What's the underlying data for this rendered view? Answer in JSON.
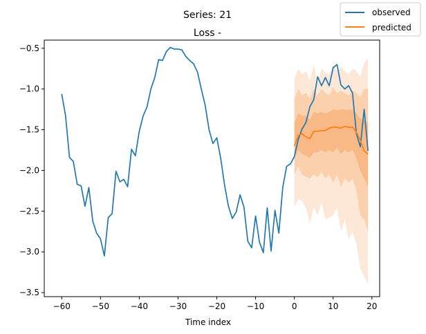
{
  "chart_data": {
    "type": "line",
    "title": "Series: 21",
    "subtitle": "Loss -",
    "xlabel": "Time index",
    "ylabel": "",
    "xlim": [
      -64.5,
      22.0
    ],
    "ylim": [
      -3.55,
      -0.4
    ],
    "xticks": [
      -60,
      -50,
      -40,
      -30,
      -20,
      -10,
      0,
      10,
      20
    ],
    "yticks": [
      -3.5,
      -3.0,
      -2.5,
      -2.0,
      -1.5,
      -1.0,
      -0.5
    ],
    "grid": false,
    "legend_position": "top-right",
    "colors": {
      "observed": "#1f77b4",
      "predicted": "#ff7f0e",
      "band_outer": "#fde7d6",
      "band_mid": "#fbd0ad",
      "band_inner": "#f9b986"
    },
    "series": [
      {
        "name": "observed",
        "x": [
          -60,
          -59,
          -58,
          -57,
          -56,
          -55,
          -54,
          -53,
          -52,
          -51,
          -50,
          -49,
          -48,
          -47,
          -46,
          -45,
          -44,
          -43,
          -42,
          -41,
          -40,
          -39,
          -38,
          -37,
          -36,
          -35,
          -34,
          -33,
          -32,
          -31,
          -30,
          -29,
          -28,
          -27,
          -26,
          -25,
          -24,
          -23,
          -22,
          -21,
          -20,
          -19,
          -18,
          -17,
          -16,
          -15,
          -14,
          -13,
          -12,
          -11,
          -10,
          -9,
          -8,
          -7,
          -6,
          -5,
          -4,
          -3,
          -2,
          -1,
          0,
          1,
          2,
          3,
          4,
          5,
          6,
          7,
          8,
          9,
          10,
          11,
          12,
          13,
          14,
          15,
          16,
          17,
          18,
          19
        ],
        "y": [
          -1.06,
          -1.33,
          -1.84,
          -1.89,
          -2.17,
          -2.19,
          -2.44,
          -2.21,
          -2.62,
          -2.77,
          -2.84,
          -3.05,
          -2.58,
          -2.53,
          -2.01,
          -2.14,
          -2.11,
          -2.2,
          -1.74,
          -1.82,
          -1.52,
          -1.33,
          -1.22,
          -1.0,
          -0.86,
          -0.64,
          -0.65,
          -0.54,
          -0.49,
          -0.51,
          -0.51,
          -0.52,
          -0.6,
          -0.65,
          -0.69,
          -0.79,
          -1.0,
          -1.2,
          -1.5,
          -1.67,
          -1.6,
          -1.85,
          -2.18,
          -2.44,
          -2.59,
          -2.51,
          -2.3,
          -2.45,
          -2.87,
          -2.95,
          -2.56,
          -2.88,
          -3.01,
          -2.46,
          -2.99,
          -2.49,
          -2.77,
          -2.21,
          -1.95,
          -1.92,
          -1.83,
          -1.62,
          -1.49,
          -1.41,
          -1.22,
          -1.13,
          -0.85,
          -0.96,
          -0.86,
          -0.96,
          -0.74,
          -0.7,
          -0.95,
          -1.0,
          -0.96,
          -1.05,
          -1.55,
          -1.71,
          -1.25,
          -1.76
        ]
      },
      {
        "name": "predicted",
        "x": [
          0,
          1,
          2,
          3,
          4,
          5,
          6,
          7,
          8,
          9,
          10,
          11,
          12,
          13,
          14,
          15,
          16,
          17,
          18,
          19
        ],
        "y": [
          -1.7,
          -1.57,
          -1.55,
          -1.59,
          -1.61,
          -1.52,
          -1.52,
          -1.51,
          -1.51,
          -1.48,
          -1.47,
          -1.47,
          -1.48,
          -1.46,
          -1.47,
          -1.47,
          -1.53,
          -1.63,
          -1.76,
          -1.8
        ]
      }
    ],
    "bands": {
      "x": [
        0,
        1,
        2,
        3,
        4,
        5,
        6,
        7,
        8,
        9,
        10,
        11,
        12,
        13,
        14,
        15,
        16,
        17,
        18,
        19
      ],
      "outer_lower": [
        -2.45,
        -2.35,
        -2.38,
        -2.46,
        -2.65,
        -2.45,
        -2.55,
        -2.4,
        -2.6,
        -2.58,
        -2.55,
        -2.45,
        -2.75,
        -2.6,
        -2.85,
        -2.75,
        -2.9,
        -3.2,
        -3.3,
        -3.4
      ],
      "outer_upper": [
        -0.88,
        -0.75,
        -0.82,
        -0.78,
        -0.9,
        -0.7,
        -0.92,
        -0.75,
        -0.8,
        -0.82,
        -0.7,
        -0.78,
        -0.73,
        -0.78,
        -0.82,
        -0.75,
        -0.78,
        -0.85,
        -0.68,
        -0.62
      ],
      "mid_lower": [
        -2.05,
        -1.95,
        -2.05,
        -2.08,
        -2.1,
        -2.05,
        -2.08,
        -2.02,
        -2.1,
        -2.05,
        -2.15,
        -2.05,
        -2.2,
        -2.1,
        -2.15,
        -2.1,
        -2.25,
        -2.55,
        -2.6,
        -2.75
      ],
      "mid_upper": [
        -1.12,
        -1.0,
        -1.08,
        -1.05,
        -1.12,
        -1.0,
        -1.08,
        -1.0,
        -1.05,
        -1.08,
        -0.98,
        -1.05,
        -1.02,
        -1.05,
        -1.08,
        -1.02,
        -1.05,
        -1.1,
        -1.0,
        -1.0
      ],
      "inner_lower": [
        -1.85,
        -1.75,
        -1.8,
        -1.82,
        -1.85,
        -1.78,
        -1.78,
        -1.75,
        -1.78,
        -1.75,
        -1.78,
        -1.72,
        -1.8,
        -1.75,
        -1.78,
        -1.75,
        -1.85,
        -2.0,
        -2.1,
        -2.2
      ],
      "inner_upper": [
        -1.42,
        -1.3,
        -1.33,
        -1.33,
        -1.38,
        -1.28,
        -1.3,
        -1.28,
        -1.3,
        -1.28,
        -1.25,
        -1.26,
        -1.25,
        -1.25,
        -1.26,
        -1.25,
        -1.3,
        -1.36,
        -1.38,
        -1.42
      ]
    }
  }
}
